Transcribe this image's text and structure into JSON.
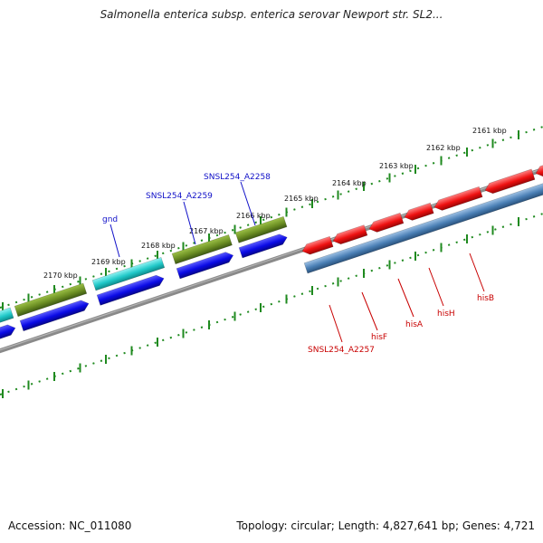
{
  "header": {
    "title": "Salmonella enterica subsp. enterica serovar Newport str. SL2..."
  },
  "footer": {
    "accession": "Accession: NC_011080",
    "summary": "Topology: circular; Length: 4,827,641 bp; Genes: 4,721"
  },
  "colors": {
    "tick": "#1f8a1f",
    "backbone": "#7a7a7a",
    "gene_olive": "#6b8e23",
    "gene_cyan": "#20c8c8",
    "gene_blue": "#0a0ae6",
    "gene_red": "#ee1010",
    "gene_steelblue": "#4a7fb5",
    "label_blue": "#1010c8",
    "label_red": "#c80000"
  },
  "kbp_labels": [
    "2161 kbp",
    "2162 kbp",
    "2163 kbp",
    "2164 kbp",
    "2165 kbp",
    "2166 kbp",
    "2167 kbp",
    "2168 kbp",
    "2169 kbp",
    "2170 kbp"
  ],
  "gene_labels_top": [
    "gnd",
    "SNSL254_A2259",
    "SNSL254_A2258"
  ],
  "gene_labels_bottom": [
    "SNSL254_A2257",
    "hisF",
    "hisA",
    "hisH",
    "hisB"
  ]
}
